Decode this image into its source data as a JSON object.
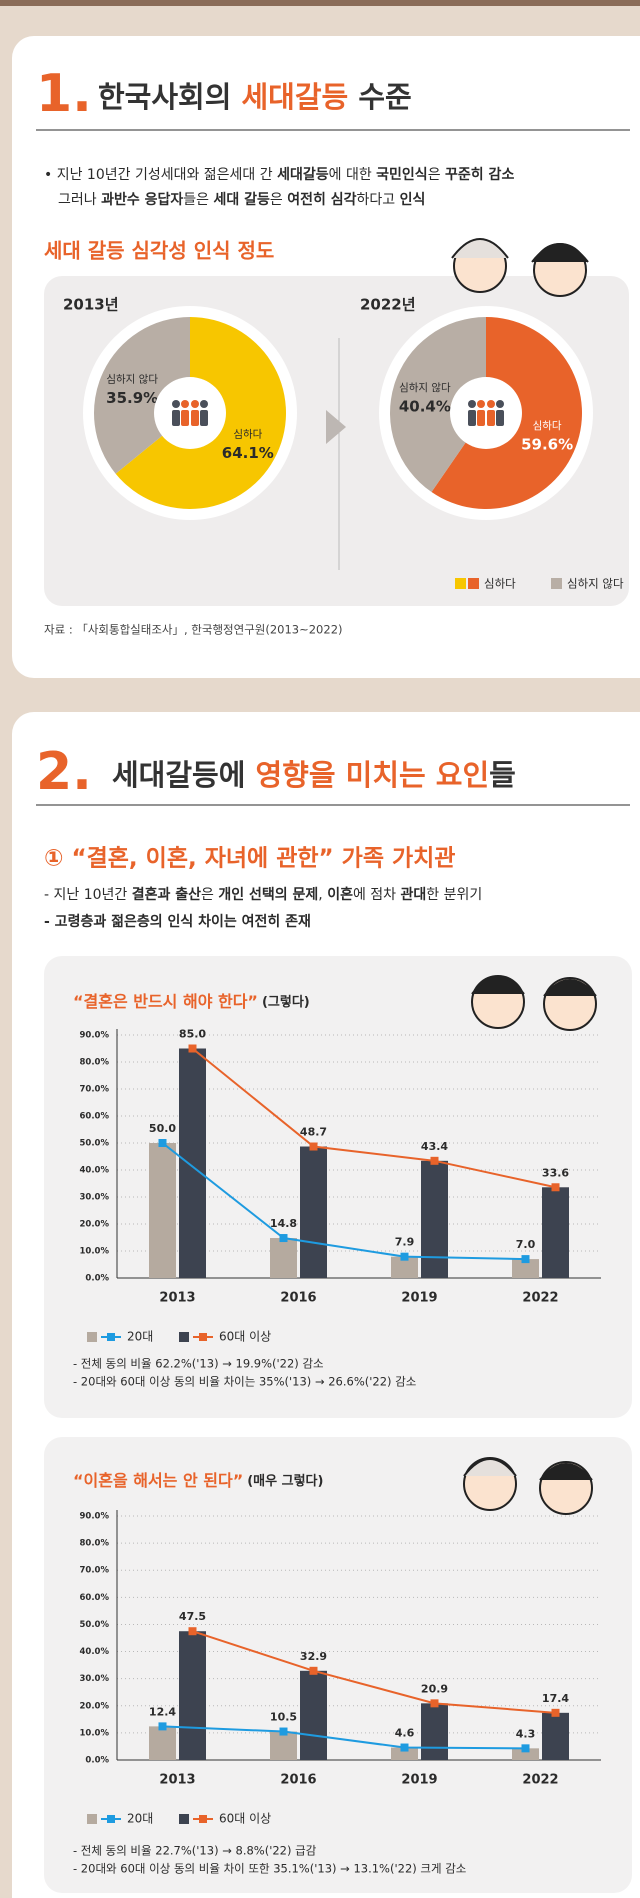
{
  "section1": {
    "number": "1.",
    "heading": [
      {
        "text": "한국사회의 "
      },
      {
        "text": "세대갈등",
        "accent": true
      },
      {
        "text": " 수준"
      }
    ],
    "bullets": [
      [
        {
          "text": "• 지난 10년간 기성세대와 젊은세대 간 "
        },
        {
          "text": "세대갈등",
          "bold": true
        },
        {
          "text": "에 대한 "
        },
        {
          "text": "국민인식",
          "bold": true
        },
        {
          "text": "은 "
        },
        {
          "text": "꾸준히 감소",
          "bold": true
        }
      ],
      [
        {
          "text": "그러나 "
        },
        {
          "text": "과반수 응답자",
          "bold": true
        },
        {
          "text": "들은 "
        },
        {
          "text": "세대 갈등",
          "bold": true
        },
        {
          "text": "은 "
        },
        {
          "text": "여전히 심각",
          "bold": true
        },
        {
          "text": "하다고 "
        },
        {
          "text": "인식",
          "bold": true
        }
      ]
    ],
    "subtitle": "세대 갈등 심각성 인식 정도",
    "legend": [
      {
        "label": "심하다",
        "colors": [
          "#f7c600",
          "#e8632a"
        ]
      },
      {
        "label": "심하지 않다",
        "colors": [
          "#b8aea5"
        ]
      }
    ],
    "source": "자료 : 「사회통합실태조사」, 한국행정연구원(2013~2022)"
  },
  "section2": {
    "number": "2.",
    "heading": [
      {
        "text": "세대갈등에 "
      },
      {
        "text": "영향을 미치는 요인",
        "accent": true
      },
      {
        "text": "들"
      }
    ],
    "subheading": "① “결혼, 이혼, 자녀에 관한” 가족 가치관",
    "bullets": [
      [
        {
          "text": "- 지난 10년간 "
        },
        {
          "text": "결혼과 출산",
          "bold": true
        },
        {
          "text": "은 "
        },
        {
          "text": "개인 선택의 문제",
          "bold": true
        },
        {
          "text": ", "
        },
        {
          "text": "이혼",
          "bold": true
        },
        {
          "text": "에 점차 "
        },
        {
          "text": "관대",
          "bold": true
        },
        {
          "text": "한 분위기"
        }
      ],
      [
        {
          "text": "- 고령층과 젊은층의 인식 차이는 여전히 존재",
          "bold": true
        }
      ]
    ]
  },
  "chart_data": [
    {
      "type": "pie",
      "title": "2013년",
      "categories": [
        "심하다",
        "심하지 않다"
      ],
      "values": [
        64.1,
        35.9
      ],
      "value_labels": [
        "64.1%",
        "35.9%"
      ],
      "colors": [
        "#f7c600",
        "#b8aea5"
      ]
    },
    {
      "type": "pie",
      "title": "2022년",
      "categories": [
        "심하다",
        "심하지 않다"
      ],
      "values": [
        59.6,
        40.4
      ],
      "value_labels": [
        "59.6%",
        "40.4%"
      ],
      "colors": [
        "#e8632a",
        "#b8aea5"
      ]
    },
    {
      "type": "combo",
      "title": "“결혼은 반드시 해야 한다”",
      "subtitle": "(그렇다)",
      "categories": [
        "2013",
        "2016",
        "2019",
        "2022"
      ],
      "series": [
        {
          "name": "20대",
          "bar_color": "#b5aa9f",
          "line_color": "#1e9be0",
          "values": [
            50.0,
            14.8,
            7.9,
            7.0
          ],
          "value_labels": [
            "50.0",
            "14.8",
            "7.9",
            "7.0"
          ]
        },
        {
          "name": "60대 이상",
          "bar_color": "#3d4350",
          "line_color": "#e8632a",
          "values": [
            85.0,
            48.7,
            43.4,
            33.6
          ],
          "value_labels": [
            "85.0",
            "48.7",
            "43.4",
            "33.6"
          ]
        }
      ],
      "ylim": [
        0,
        90
      ],
      "yticks": [
        {
          "value": 0,
          "label": "0.0%"
        },
        {
          "value": 10,
          "label": "10.0%"
        },
        {
          "value": 20,
          "label": "20.0%"
        },
        {
          "value": 30,
          "label": "30.0%"
        },
        {
          "value": 40,
          "label": "40.0%"
        },
        {
          "value": 50,
          "label": "50.0%"
        },
        {
          "value": 60,
          "label": "60.0%"
        },
        {
          "value": 70,
          "label": "70.0%"
        },
        {
          "value": 80,
          "label": "80.0%"
        },
        {
          "value": 90,
          "label": "90.0%"
        }
      ],
      "grid": true,
      "notes": [
        "- 전체 동의 비율 62.2%('13) → 19.9%('22) 감소",
        "- 20대와 60대 이상 동의 비율 차이는 35%('13) → 26.6%('22) 감소"
      ]
    },
    {
      "type": "combo",
      "title": "“이혼을 해서는 안 된다”",
      "subtitle": "(매우 그렇다)",
      "categories": [
        "2013",
        "2016",
        "2019",
        "2022"
      ],
      "series": [
        {
          "name": "20대",
          "bar_color": "#b5aa9f",
          "line_color": "#1e9be0",
          "values": [
            12.4,
            10.5,
            4.6,
            4.3
          ]
        },
        {
          "name": "60대 이상",
          "bar_color": "#3d4350",
          "line_color": "#e8632a",
          "values": [
            47.5,
            32.9,
            20.9,
            17.4
          ]
        }
      ],
      "ylim": [
        0,
        90
      ],
      "yticks": [
        {
          "value": 0,
          "label": "0.0%"
        },
        {
          "value": 10,
          "label": "10.0%"
        },
        {
          "value": 20,
          "label": "20.0%"
        },
        {
          "value": 30,
          "label": "30.0%"
        },
        {
          "value": 40,
          "label": "40.0%"
        },
        {
          "value": 50,
          "label": "50.0%"
        },
        {
          "value": 60,
          "label": "60.0%"
        },
        {
          "value": 70,
          "label": "70.0%"
        },
        {
          "value": 80,
          "label": "80.0%"
        },
        {
          "value": 90,
          "label": "90.0%"
        }
      ],
      "grid": true,
      "notes": [
        "- 전체 동의 비율 22.7%('13) → 8.8%('22) 급감",
        "- 20대와 60대 이상 동의 비율 차이 또한 35.1%('13) → 13.1%('22) 크게 감소"
      ]
    }
  ]
}
